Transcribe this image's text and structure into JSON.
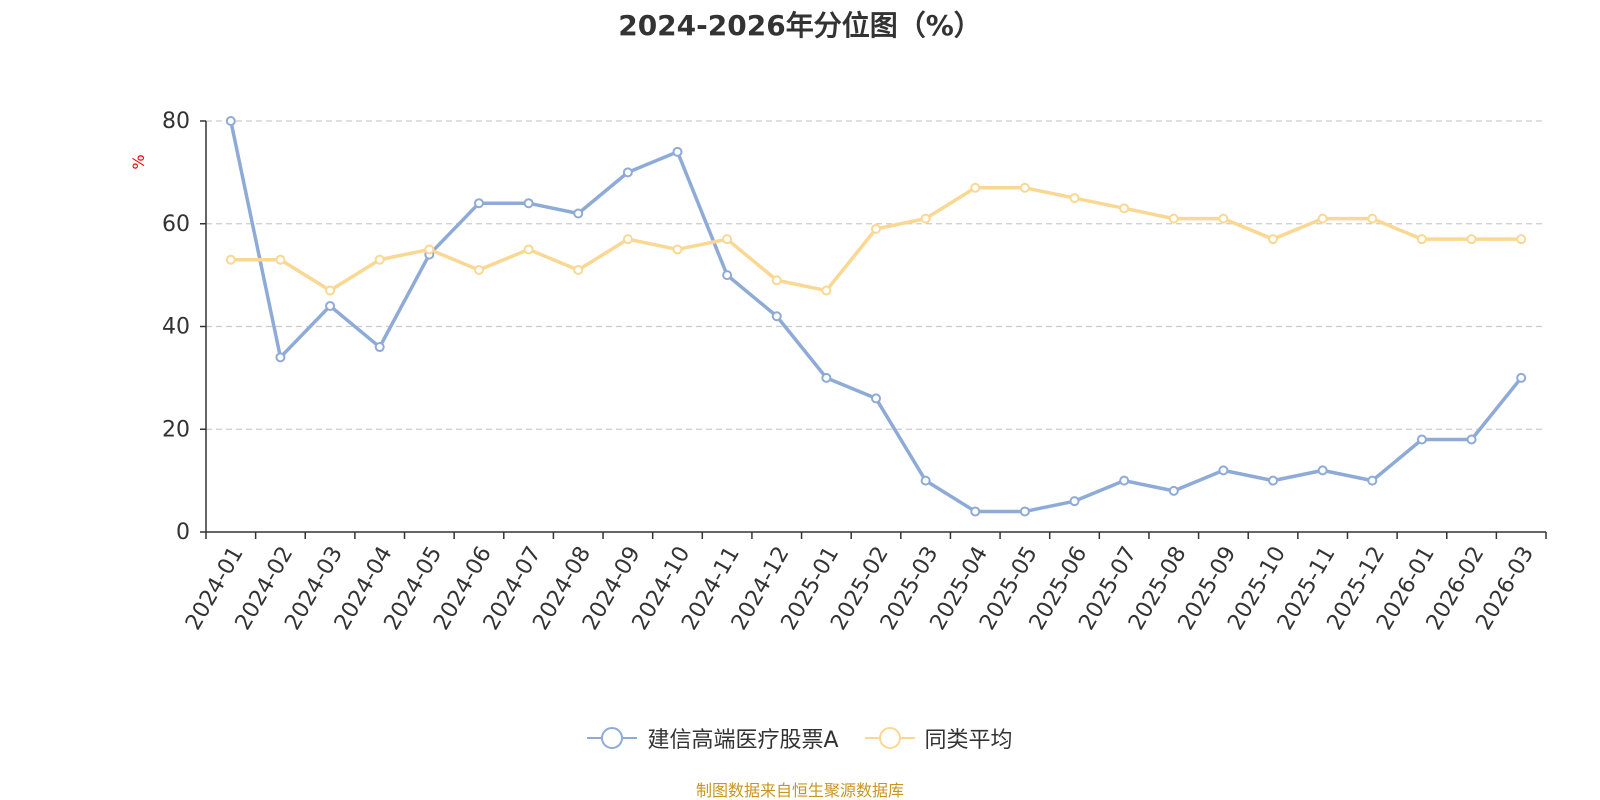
{
  "chart_data": {
    "type": "line",
    "title": "2024-2026年分位图（%）",
    "ylabel": "%",
    "xlabel": "",
    "ylim": [
      0,
      80
    ],
    "yticks": [
      0,
      20,
      40,
      60,
      80
    ],
    "grid": true,
    "legend_position": "bottom",
    "categories": [
      "2024-01",
      "2024-02",
      "2024-03",
      "2024-04",
      "2024-05",
      "2024-06",
      "2024-07",
      "2024-08",
      "2024-09",
      "2024-10",
      "2024-11",
      "2024-12",
      "2025-01",
      "2025-02",
      "2025-03",
      "2025-04",
      "2025-05",
      "2025-06",
      "2025-07",
      "2025-08",
      "2025-09",
      "2025-10",
      "2025-11",
      "2025-12",
      "2026-01",
      "2026-02",
      "2026-03"
    ],
    "series": [
      {
        "name": "建信高端医疗股票A",
        "color": "#8eabd8",
        "values": [
          80,
          34,
          44,
          36,
          54,
          64,
          64,
          62,
          70,
          74,
          50,
          42,
          30,
          26,
          10,
          4,
          4,
          6,
          10,
          8,
          12,
          10,
          12,
          10,
          18,
          18,
          30
        ]
      },
      {
        "name": "同类平均",
        "color": "#fad893",
        "values": [
          53,
          53,
          47,
          53,
          55,
          51,
          55,
          51,
          57,
          55,
          57,
          49,
          47,
          59,
          61,
          67,
          67,
          65,
          63,
          61,
          61,
          57,
          61,
          61,
          57,
          57,
          57
        ]
      }
    ]
  },
  "source_note": "制图数据来自恒生聚源数据库"
}
